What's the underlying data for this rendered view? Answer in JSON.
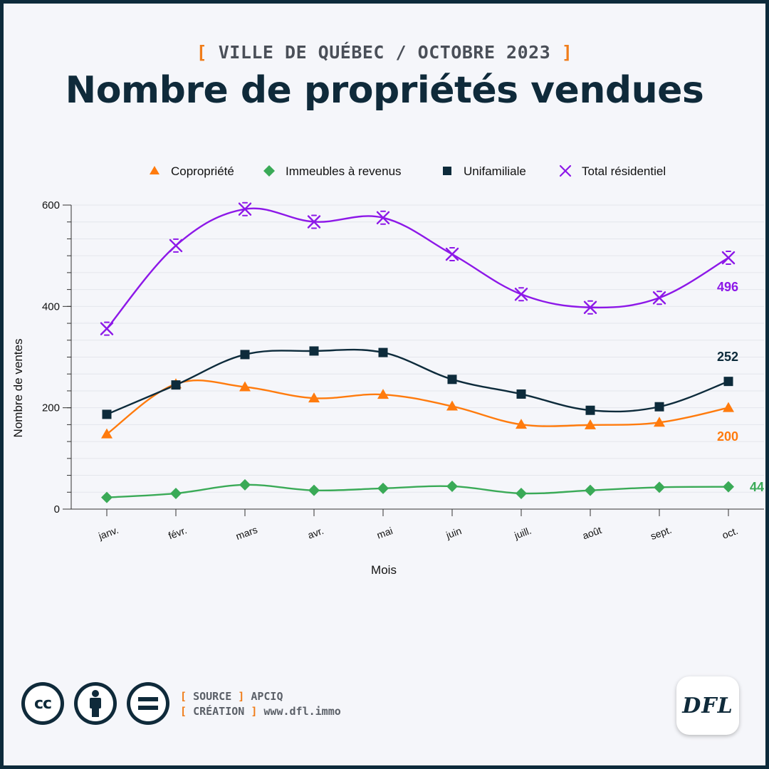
{
  "header": {
    "subtitle": "VILLE DE QUÉBEC / OCTOBRE 2023",
    "title": "Nombre de propriétés vendues"
  },
  "chart_data": {
    "type": "line",
    "title": "Nombre de propriétés vendues",
    "xlabel": "Mois",
    "ylabel": "Nombre de ventes",
    "categories": [
      "janv.",
      "févr.",
      "mars",
      "avr.",
      "mai",
      "juin",
      "juill.",
      "août",
      "sept.",
      "oct."
    ],
    "ylim": [
      0,
      600
    ],
    "yticks": [
      0,
      200,
      400,
      600
    ],
    "grid": true,
    "legend_position": "top",
    "smooth": true,
    "series": [
      {
        "name": "Copropriété",
        "color": "#ff7b0d",
        "marker": "triangle",
        "values": [
          148,
          247,
          241,
          219,
          226,
          203,
          167,
          166,
          171,
          200
        ],
        "end_label": "200"
      },
      {
        "name": "Immeubles à revenus",
        "color": "#3aaa57",
        "marker": "diamond",
        "values": [
          23,
          31,
          48,
          37,
          41,
          45,
          31,
          37,
          43,
          44
        ],
        "end_label": "44"
      },
      {
        "name": "Unifamiliale",
        "color": "#0d2b3b",
        "marker": "square",
        "values": [
          187,
          245,
          305,
          312,
          309,
          256,
          227,
          195,
          202,
          252
        ],
        "end_label": "252"
      },
      {
        "name": "Total résidentiel",
        "color": "#8d18e8",
        "marker": "x",
        "values": [
          356,
          520,
          592,
          567,
          575,
          503,
          424,
          398,
          417,
          496
        ],
        "end_label": "496"
      }
    ]
  },
  "footer": {
    "source_label": "SOURCE",
    "source_value": "APCIQ",
    "creation_label": "CRÉATION",
    "creation_value": "www.dfl.immo",
    "logo_text": "DFL",
    "license_icons": [
      "cc-icon",
      "by-icon",
      "nd-icon"
    ]
  }
}
